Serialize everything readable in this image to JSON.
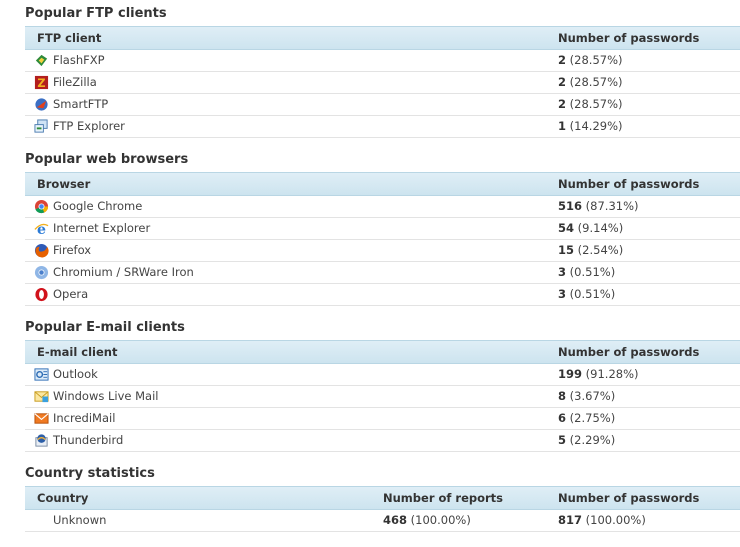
{
  "ftp": {
    "title": "Popular FTP clients",
    "col_client": "FTP client",
    "col_passwords": "Number of passwords",
    "rows": [
      {
        "name": "FlashFXP",
        "count": "2",
        "pct": "(28.57%)",
        "icon": "flashfxp-icon"
      },
      {
        "name": "FileZilla",
        "count": "2",
        "pct": "(28.57%)",
        "icon": "filezilla-icon"
      },
      {
        "name": "SmartFTP",
        "count": "2",
        "pct": "(28.57%)",
        "icon": "smartftp-icon"
      },
      {
        "name": "FTP Explorer",
        "count": "1",
        "pct": "(14.29%)",
        "icon": "ftp-explorer-icon"
      }
    ]
  },
  "browsers": {
    "title": "Popular web browsers",
    "col_client": "Browser",
    "col_passwords": "Number of passwords",
    "rows": [
      {
        "name": "Google Chrome",
        "count": "516",
        "pct": "(87.31%)",
        "icon": "chrome-icon"
      },
      {
        "name": "Internet Explorer",
        "count": "54",
        "pct": "(9.14%)",
        "icon": "ie-icon"
      },
      {
        "name": "Firefox",
        "count": "15",
        "pct": "(2.54%)",
        "icon": "firefox-icon"
      },
      {
        "name": "Chromium / SRWare Iron",
        "count": "3",
        "pct": "(0.51%)",
        "icon": "chromium-icon"
      },
      {
        "name": "Opera",
        "count": "3",
        "pct": "(0.51%)",
        "icon": "opera-icon"
      }
    ]
  },
  "email": {
    "title": "Popular E-mail clients",
    "col_client": "E-mail client",
    "col_passwords": "Number of passwords",
    "rows": [
      {
        "name": "Outlook",
        "count": "199",
        "pct": "(91.28%)",
        "icon": "outlook-icon"
      },
      {
        "name": "Windows Live Mail",
        "count": "8",
        "pct": "(3.67%)",
        "icon": "windows-live-mail-icon"
      },
      {
        "name": "IncrediMail",
        "count": "6",
        "pct": "(2.75%)",
        "icon": "incredimail-icon"
      },
      {
        "name": "Thunderbird",
        "count": "5",
        "pct": "(2.29%)",
        "icon": "thunderbird-icon"
      }
    ]
  },
  "country": {
    "title": "Country statistics",
    "col_country": "Country",
    "col_reports": "Number of reports",
    "col_passwords": "Number of passwords",
    "rows": [
      {
        "name": "Unknown",
        "reports": "468",
        "reports_pct": "(100.00%)",
        "passwords": "817",
        "passwords_pct": "(100.00%)"
      }
    ]
  }
}
